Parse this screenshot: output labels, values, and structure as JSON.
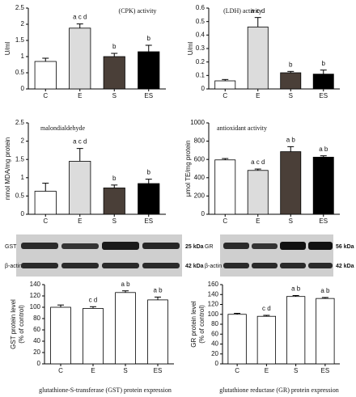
{
  "chart_data": [
    {
      "type": "bar",
      "title": "(CPK) activity",
      "ylabel": [
        "U/ml"
      ],
      "categories": [
        "C",
        "E",
        "S",
        "ES"
      ],
      "colors": [
        "#ffffff",
        "#dcdcdc",
        "#4a3f38",
        "#000000"
      ],
      "values": [
        0.85,
        1.88,
        1.0,
        1.15
      ],
      "errors": [
        0.1,
        0.13,
        0.1,
        0.2
      ],
      "significance": [
        null,
        "a c d",
        "b",
        "b"
      ],
      "ylim": [
        0,
        2.5
      ],
      "yticks": [
        0,
        0.5,
        1,
        1.5,
        2,
        2.5
      ]
    },
    {
      "type": "bar",
      "title": "(LDH) activity",
      "ylabel": [
        "U/ml"
      ],
      "categories": [
        "C",
        "E",
        "S",
        "ES"
      ],
      "colors": [
        "#ffffff",
        "#dcdcdc",
        "#4a3f38",
        "#000000"
      ],
      "values": [
        0.06,
        0.46,
        0.12,
        0.11
      ],
      "errors": [
        0.01,
        0.07,
        0.01,
        0.03
      ],
      "significance": [
        null,
        "a c d",
        "b",
        "b"
      ],
      "ylim": [
        0,
        0.6
      ],
      "yticks": [
        0,
        0.1,
        0.2,
        0.3,
        0.4,
        0.5,
        0.6
      ]
    },
    {
      "type": "bar",
      "title": "malondialdehyde",
      "ylabel": [
        "nmol MDA/mg protein"
      ],
      "categories": [
        "C",
        "E",
        "S",
        "ES"
      ],
      "colors": [
        "#ffffff",
        "#dcdcdc",
        "#4a3f38",
        "#000000"
      ],
      "values": [
        0.63,
        1.45,
        0.72,
        0.84
      ],
      "errors": [
        0.22,
        0.35,
        0.08,
        0.12
      ],
      "significance": [
        null,
        "a c d",
        "b",
        "b"
      ],
      "ylim": [
        0,
        2.5
      ],
      "yticks": [
        0,
        0.5,
        1,
        1.5,
        2,
        2.5
      ]
    },
    {
      "type": "bar",
      "title": "antioxidant  activity",
      "ylabel": [
        "µmol TE/mg protein"
      ],
      "categories": [
        "C",
        "E",
        "S",
        "ES"
      ],
      "colors": [
        "#ffffff",
        "#dcdcdc",
        "#4a3f38",
        "#000000"
      ],
      "values": [
        595,
        480,
        685,
        625
      ],
      "errors": [
        15,
        15,
        55,
        15
      ],
      "significance": [
        null,
        "a c d",
        "a b",
        "a b"
      ],
      "ylim": [
        0,
        1000
      ],
      "yticks": [
        0,
        200,
        400,
        600,
        800,
        1000
      ]
    },
    {
      "type": "bar",
      "title": "glutathione-S-transferase (GST) protein expression",
      "ylabel": [
        "GST protein level",
        "(% of control)"
      ],
      "categories": [
        "C",
        "E",
        "S",
        "ES"
      ],
      "colors": [
        "#ffffff",
        "#ffffff",
        "#ffffff",
        "#ffffff"
      ],
      "values": [
        100,
        98,
        126,
        113
      ],
      "errors": [
        4,
        3,
        3,
        5
      ],
      "significance": [
        null,
        "c d",
        "a b",
        "a b"
      ],
      "ylim": [
        0,
        140
      ],
      "yticks": [
        0,
        20,
        40,
        60,
        80,
        100,
        120,
        140
      ]
    },
    {
      "type": "bar",
      "title": "glutathione reductase (GR) protein expression",
      "ylabel": [
        "GR protein level",
        "(% of control)"
      ],
      "categories": [
        "C",
        "E",
        "S",
        "ES"
      ],
      "colors": [
        "#ffffff",
        "#ffffff",
        "#ffffff",
        "#ffffff"
      ],
      "values": [
        100,
        96,
        136,
        132
      ],
      "errors": [
        2,
        2,
        2,
        2
      ],
      "significance": [
        null,
        "c d",
        "a b",
        "a b"
      ],
      "ylim": [
        0,
        160
      ],
      "yticks": [
        0,
        20,
        40,
        60,
        80,
        100,
        120,
        140,
        160
      ]
    }
  ],
  "blots": [
    {
      "protein": "GST",
      "protein_kda": "25 kDa",
      "control": "β-actin",
      "control_kda": "42 kDa"
    },
    {
      "protein": "GR",
      "protein_kda": "56 kDa",
      "control": "β-actin",
      "control_kda": "42 kDa"
    }
  ]
}
